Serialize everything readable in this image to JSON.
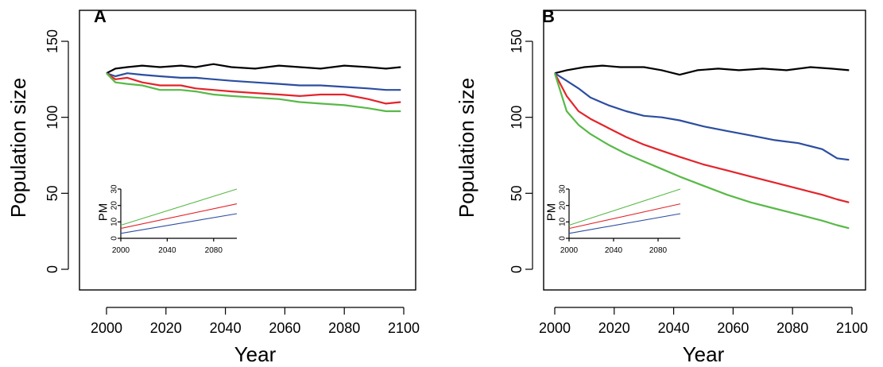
{
  "chart_data": [
    {
      "type": "line",
      "panel_label": "A",
      "xlabel": "Year",
      "ylabel": "Population size",
      "xlim": [
        2000,
        2100
      ],
      "ylim": [
        0,
        150
      ],
      "x_ticks": [
        2000,
        2020,
        2040,
        2060,
        2080,
        2100
      ],
      "y_ticks": [
        0,
        50,
        100,
        150
      ],
      "grid": false,
      "series": [
        {
          "color": "#000000",
          "x": [
            2000,
            2003,
            2007,
            2012,
            2018,
            2025,
            2030,
            2036,
            2042,
            2050,
            2058,
            2065,
            2072,
            2080,
            2088,
            2094,
            2099
          ],
          "values": [
            129,
            132,
            133,
            134,
            133,
            134,
            133,
            135,
            133,
            132,
            134,
            133,
            132,
            134,
            133,
            132,
            133
          ]
        },
        {
          "color": "#2c4ea0",
          "x": [
            2000,
            2003,
            2007,
            2012,
            2018,
            2025,
            2030,
            2036,
            2042,
            2050,
            2058,
            2065,
            2072,
            2080,
            2088,
            2094,
            2099
          ],
          "values": [
            129,
            127,
            129,
            128,
            127,
            126,
            126,
            125,
            124,
            123,
            122,
            121,
            121,
            120,
            119,
            118,
            118
          ]
        },
        {
          "color": "#e3242b",
          "x": [
            2000,
            2003,
            2007,
            2012,
            2018,
            2025,
            2030,
            2036,
            2042,
            2050,
            2058,
            2065,
            2072,
            2080,
            2088,
            2094,
            2099
          ],
          "values": [
            129,
            125,
            126,
            123,
            121,
            121,
            119,
            118,
            117,
            116,
            115,
            114,
            115,
            115,
            112,
            109,
            110
          ]
        },
        {
          "color": "#58b947",
          "x": [
            2000,
            2003,
            2007,
            2012,
            2018,
            2025,
            2030,
            2036,
            2042,
            2050,
            2058,
            2065,
            2072,
            2080,
            2088,
            2094,
            2099
          ],
          "values": [
            129,
            123,
            122,
            121,
            118,
            118,
            117,
            115,
            114,
            113,
            112,
            110,
            109,
            108,
            106,
            104,
            104
          ]
        }
      ],
      "inset": {
        "ylabel": "PM",
        "xlim": [
          2000,
          2100
        ],
        "ylim": [
          0,
          30
        ],
        "x_ticks": [
          2000,
          2040,
          2080
        ],
        "y_ticks": [
          0,
          10,
          20,
          30
        ],
        "series": [
          {
            "color": "#58b947",
            "x": [
              2000,
              2100
            ],
            "values": [
              8,
              30
            ]
          },
          {
            "color": "#e3242b",
            "x": [
              2000,
              2100
            ],
            "values": [
              6,
              21
            ]
          },
          {
            "color": "#2c4ea0",
            "x": [
              2000,
              2100
            ],
            "values": [
              3,
              15
            ]
          }
        ]
      }
    },
    {
      "type": "line",
      "panel_label": "B",
      "xlabel": "Year",
      "ylabel": "Population size",
      "xlim": [
        2000,
        2100
      ],
      "ylim": [
        0,
        150
      ],
      "x_ticks": [
        2000,
        2020,
        2040,
        2060,
        2080,
        2100
      ],
      "y_ticks": [
        0,
        50,
        100,
        150
      ],
      "grid": false,
      "series": [
        {
          "color": "#000000",
          "x": [
            2000,
            2004,
            2010,
            2016,
            2022,
            2030,
            2036,
            2042,
            2048,
            2055,
            2062,
            2070,
            2078,
            2086,
            2093,
            2099
          ],
          "values": [
            129,
            131,
            133,
            134,
            133,
            133,
            131,
            128,
            131,
            132,
            131,
            132,
            131,
            133,
            132,
            131
          ]
        },
        {
          "color": "#2c4ea0",
          "x": [
            2000,
            2004,
            2008,
            2012,
            2018,
            2024,
            2030,
            2036,
            2042,
            2050,
            2058,
            2066,
            2074,
            2082,
            2090,
            2095,
            2099
          ],
          "values": [
            129,
            124,
            119,
            113,
            108,
            104,
            101,
            100,
            98,
            94,
            91,
            88,
            85,
            83,
            79,
            73,
            72
          ]
        },
        {
          "color": "#e3242b",
          "x": [
            2000,
            2004,
            2008,
            2012,
            2018,
            2024,
            2030,
            2036,
            2042,
            2050,
            2058,
            2066,
            2074,
            2082,
            2090,
            2095,
            2099
          ],
          "values": [
            129,
            114,
            104,
            99,
            93,
            87,
            82,
            78,
            74,
            69,
            65,
            61,
            57,
            53,
            49,
            46,
            44
          ]
        },
        {
          "color": "#58b947",
          "x": [
            2000,
            2004,
            2008,
            2012,
            2018,
            2024,
            2030,
            2036,
            2042,
            2050,
            2058,
            2066,
            2074,
            2082,
            2090,
            2095,
            2099
          ],
          "values": [
            129,
            104,
            95,
            89,
            82,
            76,
            71,
            66,
            61,
            55,
            49,
            44,
            40,
            36,
            32,
            29,
            27
          ]
        }
      ],
      "inset": {
        "ylabel": "PM",
        "xlim": [
          2000,
          2100
        ],
        "ylim": [
          0,
          30
        ],
        "x_ticks": [
          2000,
          2040,
          2080
        ],
        "y_ticks": [
          0,
          10,
          20,
          30
        ],
        "series": [
          {
            "color": "#58b947",
            "x": [
              2000,
              2100
            ],
            "values": [
              8,
              30
            ]
          },
          {
            "color": "#e3242b",
            "x": [
              2000,
              2100
            ],
            "values": [
              6,
              21
            ]
          },
          {
            "color": "#2c4ea0",
            "x": [
              2000,
              2100
            ],
            "values": [
              3,
              15
            ]
          }
        ]
      }
    }
  ]
}
